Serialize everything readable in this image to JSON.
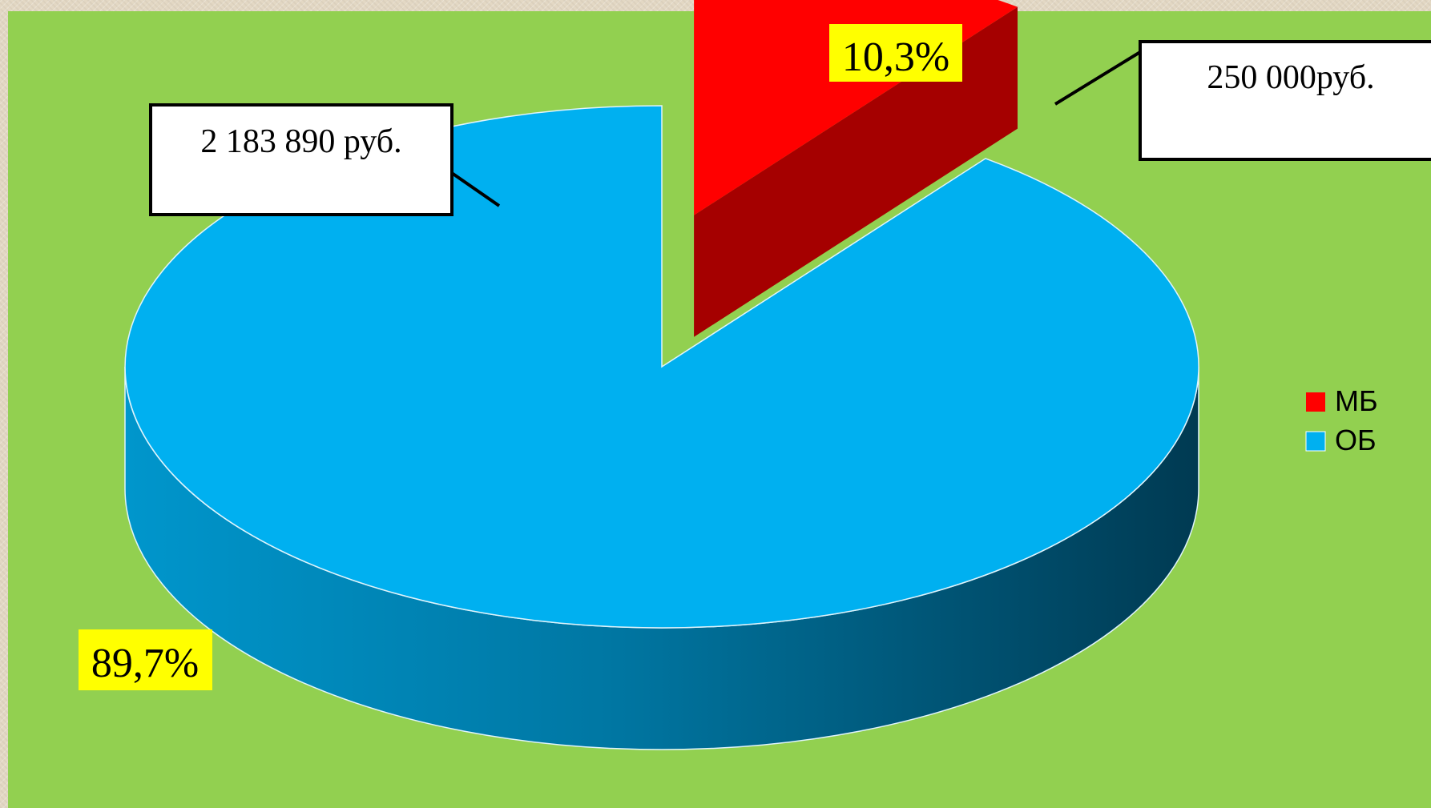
{
  "chart_data": {
    "type": "pie",
    "variant": "3d-exploded",
    "series": [
      {
        "name": "МБ",
        "percent": 10.3,
        "percent_label": "10,3%",
        "value_label": "250 000руб.",
        "color": "#ff0000",
        "side_color": "#a50000"
      },
      {
        "name": "ОБ",
        "percent": 89.7,
        "percent_label": "89,7%",
        "value_label": "2 183 890 руб.",
        "color": "#00b0f0",
        "side_color": "#00506e"
      }
    ],
    "legend_placement": "right",
    "background_color": "#92d050",
    "label_highlight_color": "#ffff00"
  }
}
